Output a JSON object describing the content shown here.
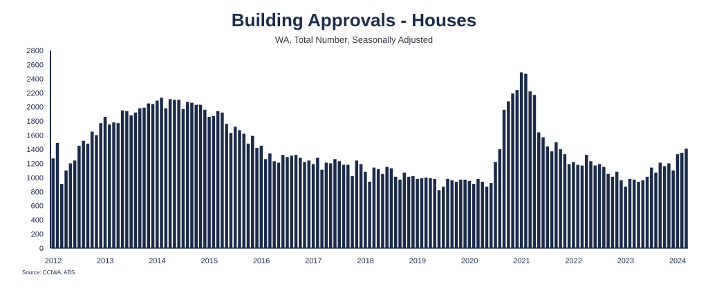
{
  "chart_data": {
    "type": "bar",
    "title": "Building Approvals - Houses",
    "subtitle": "WA, Total Number, Seasonally Adjusted",
    "source": "Source: CCIWA, ABS",
    "color": "#1c2b4a",
    "ylim": [
      0,
      2800
    ],
    "yticks": [
      0,
      200,
      400,
      600,
      800,
      1000,
      1200,
      1400,
      1600,
      1800,
      2000,
      2200,
      2400,
      2600,
      2800
    ],
    "xticks": [
      "2012",
      "2013",
      "2014",
      "2015",
      "2016",
      "2017",
      "2018",
      "2019",
      "2020",
      "2021",
      "2022",
      "2023",
      "2024"
    ],
    "start": "2012-01",
    "values": [
      1270,
      1490,
      910,
      1100,
      1200,
      1240,
      1450,
      1520,
      1480,
      1650,
      1600,
      1770,
      1860,
      1750,
      1780,
      1770,
      1950,
      1940,
      1880,
      1920,
      1980,
      1990,
      2050,
      2040,
      2090,
      2130,
      1980,
      2110,
      2100,
      2100,
      1970,
      2070,
      2060,
      2030,
      2030,
      1960,
      1860,
      1870,
      1940,
      1920,
      1760,
      1630,
      1720,
      1670,
      1620,
      1480,
      1590,
      1420,
      1450,
      1260,
      1340,
      1230,
      1210,
      1320,
      1290,
      1310,
      1320,
      1280,
      1220,
      1240,
      1190,
      1280,
      1110,
      1210,
      1200,
      1260,
      1230,
      1180,
      1180,
      1020,
      1240,
      1190,
      1080,
      940,
      1140,
      1120,
      1050,
      1150,
      1130,
      1010,
      970,
      1070,
      1010,
      1020,
      980,
      990,
      1000,
      990,
      980,
      820,
      870,
      980,
      960,
      940,
      970,
      970,
      950,
      910,
      980,
      940,
      870,
      920,
      1220,
      1400,
      1960,
      2080,
      2190,
      2240,
      2490,
      2470,
      2220,
      2170,
      1640,
      1570,
      1440,
      1370,
      1500,
      1400,
      1330,
      1190,
      1220,
      1180,
      1170,
      1320,
      1230,
      1170,
      1190,
      1150,
      1050,
      1010,
      1080,
      960,
      870,
      980,
      970,
      940,
      960,
      1010,
      1140,
      1070,
      1210,
      1160,
      1200,
      1100,
      1330,
      1350,
      1410
    ]
  }
}
